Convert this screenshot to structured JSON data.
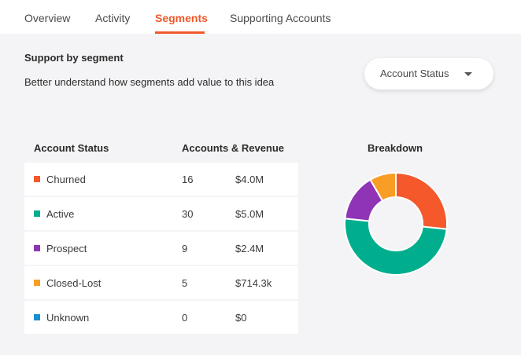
{
  "tabs": [
    {
      "label": "Overview"
    },
    {
      "label": "Activity"
    },
    {
      "label": "Segments"
    },
    {
      "label": "Supporting Accounts"
    }
  ],
  "active_tab": "Segments",
  "section": {
    "title": "Support by segment",
    "subtitle": "Better understand how segments add value to this idea"
  },
  "dropdown": {
    "selected": "Account Status"
  },
  "table": {
    "col_status": "Account Status",
    "col_accounts": "Accounts & Revenue",
    "rows": [
      {
        "label": "Churned",
        "count": "16",
        "revenue": "$4.0M",
        "color": "#f4582b"
      },
      {
        "label": "Active",
        "count": "30",
        "revenue": "$5.0M",
        "color": "#00ae8e"
      },
      {
        "label": "Prospect",
        "count": "9",
        "revenue": "$2.4M",
        "color": "#8e34b5"
      },
      {
        "label": "Closed-Lost",
        "count": "5",
        "revenue": "$714.3k",
        "color": "#f89d25"
      },
      {
        "label": "Unknown",
        "count": "0",
        "revenue": "$0",
        "color": "#1a8fd1"
      }
    ]
  },
  "breakdown_title": "Breakdown",
  "chart_data": {
    "type": "pie",
    "categories": [
      "Churned",
      "Active",
      "Prospect",
      "Closed-Lost",
      "Unknown"
    ],
    "values": [
      16,
      30,
      9,
      5,
      0
    ],
    "colors": [
      "#f4582b",
      "#00ae8e",
      "#8e34b5",
      "#f89d25",
      "#1a8fd1"
    ]
  }
}
